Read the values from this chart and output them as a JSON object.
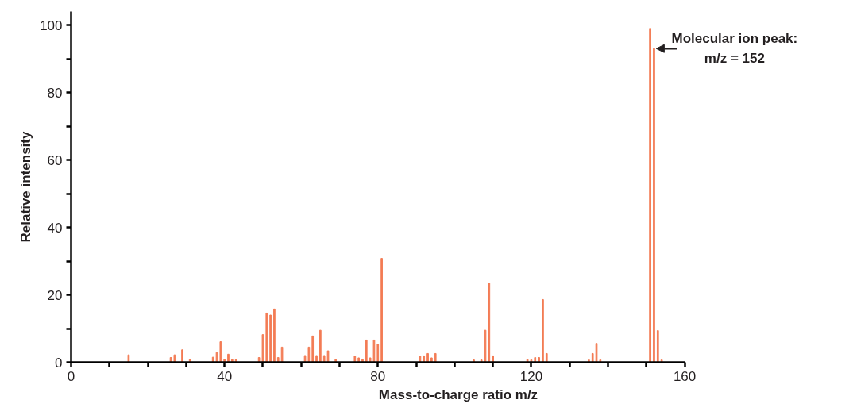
{
  "chart_data": {
    "type": "bar",
    "xlabel": "Mass-to-charge ratio m/z",
    "ylabel": "Relative intensity",
    "x": [
      15,
      26,
      27,
      29,
      31,
      37,
      38,
      39,
      40,
      41,
      42,
      43,
      49,
      50,
      51,
      52,
      53,
      54,
      55,
      61,
      62,
      63,
      64,
      65,
      66,
      67,
      69,
      74,
      75,
      76,
      77,
      78,
      79,
      80,
      81,
      91,
      92,
      93,
      94,
      95,
      105,
      107,
      108,
      109,
      110,
      119,
      120,
      121,
      122,
      123,
      124,
      135,
      136,
      137,
      138,
      151,
      152,
      153,
      154
    ],
    "values": [
      2.2,
      1.4,
      2.2,
      3.7,
      0.8,
      1.5,
      2.9,
      6.1,
      0.8,
      2.4,
      0.8,
      0.8,
      1.4,
      8.2,
      14.6,
      14.0,
      15.8,
      1.4,
      4.5,
      2.0,
      4.5,
      7.8,
      2.0,
      9.5,
      2.0,
      3.4,
      0.8,
      1.8,
      1.3,
      0.8,
      6.6,
      1.3,
      6.6,
      5.3,
      30.8,
      1.8,
      1.9,
      2.6,
      1.3,
      2.6,
      0.7,
      0.7,
      9.5,
      23.5,
      1.9,
      0.8,
      0.7,
      1.4,
      1.4,
      18.6,
      2.6,
      0.7,
      2.6,
      5.6,
      0.7,
      99,
      93,
      9.4,
      0.7
    ],
    "color": "#f37c55",
    "xlim": [
      0,
      160
    ],
    "xticks": [
      0,
      {
        "value": 10,
        "label": null
      },
      {
        "value": 20,
        "label": null
      },
      {
        "value": 30,
        "label": null
      },
      40,
      {
        "value": 50,
        "label": null
      },
      {
        "value": 60,
        "label": null
      },
      {
        "value": 70,
        "label": null
      },
      80,
      {
        "value": 90,
        "label": null
      },
      {
        "value": 100,
        "label": null
      },
      {
        "value": 110,
        "label": null
      },
      120,
      {
        "value": 130,
        "label": null
      },
      {
        "value": 140,
        "label": null
      },
      {
        "value": 150,
        "label": null
      },
      160
    ],
    "ylim": [
      0,
      104
    ],
    "yticks": [
      0,
      {
        "value": 10,
        "label": null
      },
      20,
      {
        "value": 30,
        "label": null
      },
      40,
      {
        "value": 50,
        "label": null
      },
      60,
      {
        "value": 70,
        "label": null
      },
      80,
      {
        "value": 90,
        "label": null
      },
      100
    ],
    "grid": false,
    "annotations": [
      {
        "text": "Molecular ion peak:\nm/z = 152",
        "x": 152,
        "y": 93
      }
    ]
  }
}
